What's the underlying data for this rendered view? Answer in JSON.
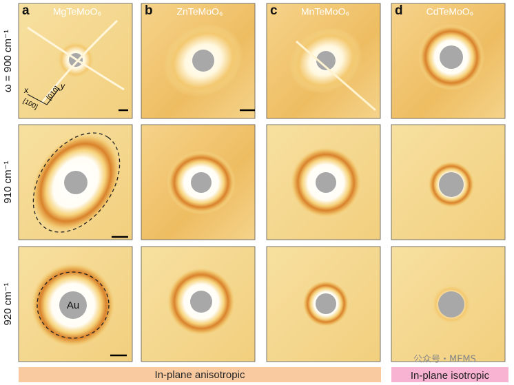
{
  "columns": [
    {
      "letter": "a",
      "title": "MgTeMoO₆"
    },
    {
      "letter": "b",
      "title": "ZnTeMoO₆"
    },
    {
      "letter": "c",
      "title": "MnTeMoO₆"
    },
    {
      "letter": "d",
      "title": "CdTeMoO₆"
    }
  ],
  "rows": [
    {
      "label": "ω = 900 cm⁻¹"
    },
    {
      "label": "910 cm⁻¹"
    },
    {
      "label": "920 cm⁻¹"
    }
  ],
  "annotations": {
    "au": "Au",
    "x_axis": "x",
    "x_dir": "[100]",
    "y_axis": "y",
    "y_dir": "[010]"
  },
  "footer": {
    "anisotropic": "In-plane anisotropic",
    "isotropic": "In-plane isotropic"
  },
  "watermark": "公众号・MEMS"
}
